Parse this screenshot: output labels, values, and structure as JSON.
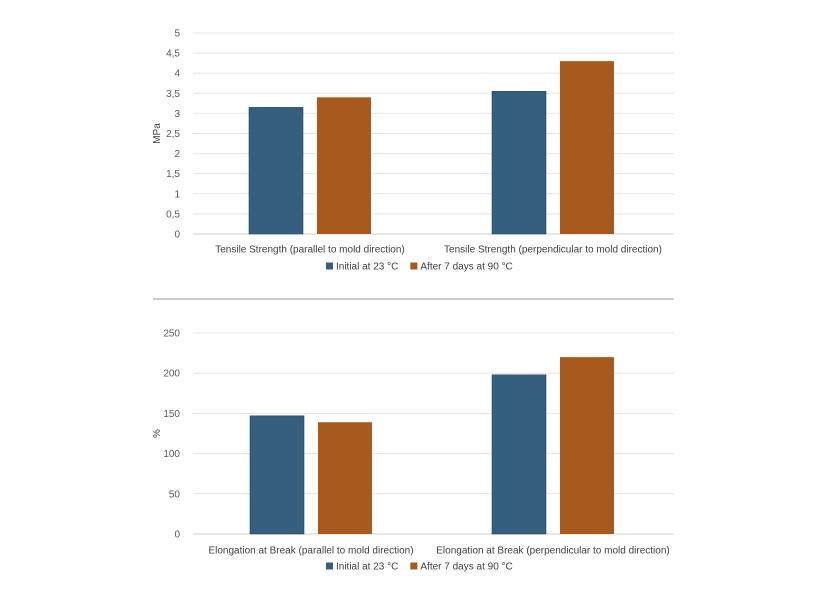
{
  "chart_data": [
    {
      "type": "bar",
      "ylabel": "MPa",
      "ylim": [
        0,
        5
      ],
      "ytick_labels": [
        "0",
        "0,5",
        "1",
        "1,5",
        "2",
        "2,5",
        "3",
        "3,5",
        "4",
        "4,5",
        "5"
      ],
      "grid": true,
      "legend_position": "bottom",
      "categories": [
        "Tensile Strength (parallel to mold direction)",
        "Tensile Strength (perpendicular to mold direction)"
      ],
      "series": [
        {
          "name": "Initial at 23 °C",
          "color": "#355f7f",
          "values": [
            3.15,
            3.55
          ]
        },
        {
          "name": "After 7 days at 90 °C",
          "color": "#a85a1e",
          "values": [
            3.4,
            4.3
          ]
        }
      ]
    },
    {
      "type": "bar",
      "ylabel": "%",
      "ylim": [
        0,
        250
      ],
      "ytick_labels": [
        "0",
        "50",
        "100",
        "150",
        "200",
        "250"
      ],
      "grid": true,
      "legend_position": "bottom",
      "categories": [
        "Elongation at Break (parallel to mold direction)",
        "Elongation at Break (perpendicular to mold direction)"
      ],
      "series": [
        {
          "name": "Initial at 23 °C",
          "color": "#355f7f",
          "values": [
            147,
            198
          ]
        },
        {
          "name": "After 7 days at 90 °C",
          "color": "#a85a1e",
          "values": [
            139,
            220
          ]
        }
      ]
    }
  ]
}
